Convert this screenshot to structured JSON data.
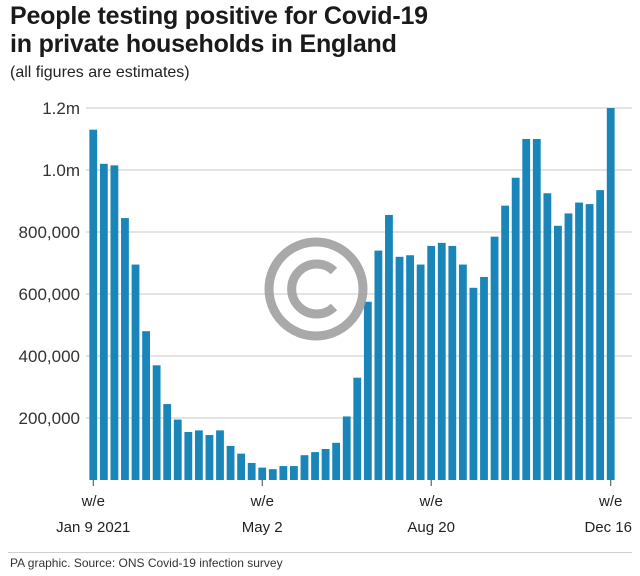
{
  "title_line1": "People testing positive for Covid-19",
  "title_line2": "in private households in England",
  "subtitle": "(all figures are estimates)",
  "source": "PA graphic. Source: ONS Covid-19 infection survey",
  "watermark_icon": "copyright-icon",
  "colors": {
    "bar": "#1a85b8",
    "grid": "#c8c8c8",
    "watermark": "#a0a0a0"
  },
  "chart_data": {
    "type": "bar",
    "title": "People testing positive for Covid-19 in private households in England",
    "subtitle": "(all figures are estimates)",
    "xlabel": "",
    "ylabel": "",
    "ylim": [
      0,
      1200000
    ],
    "grid": true,
    "y_ticks": [
      {
        "value": 200000,
        "label": "200,000"
      },
      {
        "value": 400000,
        "label": "400,000"
      },
      {
        "value": 600000,
        "label": "600,000"
      },
      {
        "value": 800000,
        "label": "800,000"
      },
      {
        "value": 1000000,
        "label": "1.0m"
      },
      {
        "value": 1200000,
        "label": "1.2m"
      }
    ],
    "x_ticks": [
      {
        "index": 0,
        "line1": "w/e",
        "line2": "Jan 9 2021"
      },
      {
        "index": 16,
        "line1": "w/e",
        "line2": "May 2"
      },
      {
        "index": 32,
        "line1": "w/e",
        "line2": "Aug 20"
      },
      {
        "index": 49,
        "line1": "w/e",
        "line2": "Dec 16"
      }
    ],
    "values": [
      1130000,
      1020000,
      1015000,
      845000,
      695000,
      480000,
      370000,
      245000,
      195000,
      155000,
      160000,
      145000,
      160000,
      110000,
      85000,
      55000,
      40000,
      35000,
      45000,
      45000,
      80000,
      90000,
      100000,
      120000,
      205000,
      330000,
      575000,
      740000,
      855000,
      720000,
      725000,
      695000,
      755000,
      765000,
      755000,
      695000,
      620000,
      655000,
      785000,
      885000,
      975000,
      1100000,
      1100000,
      925000,
      820000,
      860000,
      895000,
      890000,
      935000,
      1200000
    ]
  }
}
